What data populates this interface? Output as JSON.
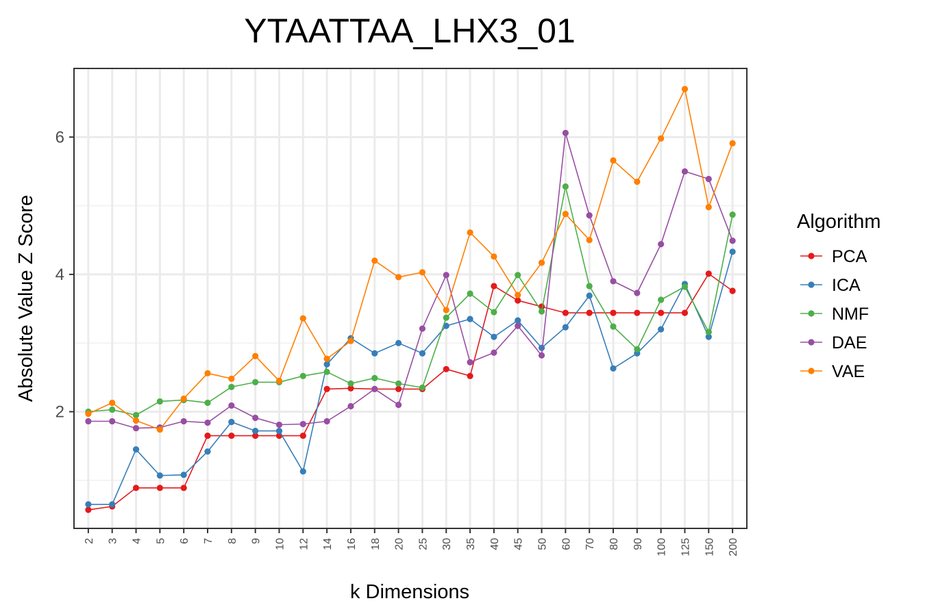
{
  "chart_data": {
    "type": "line",
    "title": "YTAATTAA_LHX3_01",
    "xlabel": "k Dimensions",
    "ylabel": "Absolute Value Z Score",
    "categories": [
      "2",
      "3",
      "4",
      "5",
      "6",
      "7",
      "8",
      "9",
      "10",
      "12",
      "14",
      "16",
      "18",
      "20",
      "25",
      "30",
      "35",
      "40",
      "45",
      "50",
      "60",
      "70",
      "80",
      "90",
      "100",
      "125",
      "150",
      "200"
    ],
    "yticks": [
      2,
      4,
      6
    ],
    "ytick_labels": [
      "2",
      "4",
      "6"
    ],
    "ylim": [
      0.3,
      7.0
    ],
    "grid": true,
    "legend_title": "Algorithm",
    "legend_position": "right",
    "series": [
      {
        "name": "PCA",
        "color": "#e41a1c",
        "values": [
          0.57,
          0.62,
          0.89,
          0.89,
          0.89,
          1.65,
          1.65,
          1.65,
          1.65,
          1.65,
          2.33,
          2.34,
          2.33,
          2.33,
          2.33,
          2.62,
          2.52,
          3.83,
          3.62,
          3.53,
          3.44,
          3.44,
          3.44,
          3.44,
          3.44,
          3.44,
          4.01,
          3.76
        ]
      },
      {
        "name": "ICA",
        "color": "#377eb8",
        "values": [
          0.65,
          0.65,
          1.45,
          1.07,
          1.08,
          1.42,
          1.85,
          1.72,
          1.72,
          1.13,
          2.69,
          3.07,
          2.85,
          3.0,
          2.85,
          3.25,
          3.35,
          3.09,
          3.33,
          2.93,
          3.23,
          3.69,
          2.63,
          2.85,
          3.2,
          3.86,
          3.09,
          4.33
        ]
      },
      {
        "name": "NMF",
        "color": "#4daf4a",
        "values": [
          2.0,
          2.03,
          1.95,
          2.15,
          2.17,
          2.13,
          2.36,
          2.43,
          2.43,
          2.52,
          2.58,
          2.41,
          2.49,
          2.41,
          2.35,
          3.37,
          3.72,
          3.45,
          3.99,
          3.46,
          5.28,
          3.83,
          3.24,
          2.91,
          3.63,
          3.82,
          3.16,
          4.87
        ]
      },
      {
        "name": "DAE",
        "color": "#984ea3",
        "values": [
          1.86,
          1.86,
          1.76,
          1.77,
          1.86,
          1.84,
          2.09,
          1.91,
          1.81,
          1.82,
          1.86,
          2.08,
          2.33,
          2.1,
          3.21,
          3.99,
          2.72,
          2.86,
          3.25,
          2.82,
          6.06,
          4.86,
          3.9,
          3.73,
          4.44,
          5.5,
          5.39,
          4.49
        ]
      },
      {
        "name": "VAE",
        "color": "#ff7f00",
        "values": [
          1.97,
          2.13,
          1.87,
          1.74,
          2.19,
          2.56,
          2.48,
          2.81,
          2.45,
          3.36,
          2.77,
          3.03,
          4.2,
          3.96,
          4.03,
          3.48,
          4.61,
          4.26,
          3.7,
          4.17,
          4.88,
          4.5,
          5.66,
          5.35,
          5.98,
          6.7,
          4.98,
          5.91
        ]
      }
    ]
  }
}
